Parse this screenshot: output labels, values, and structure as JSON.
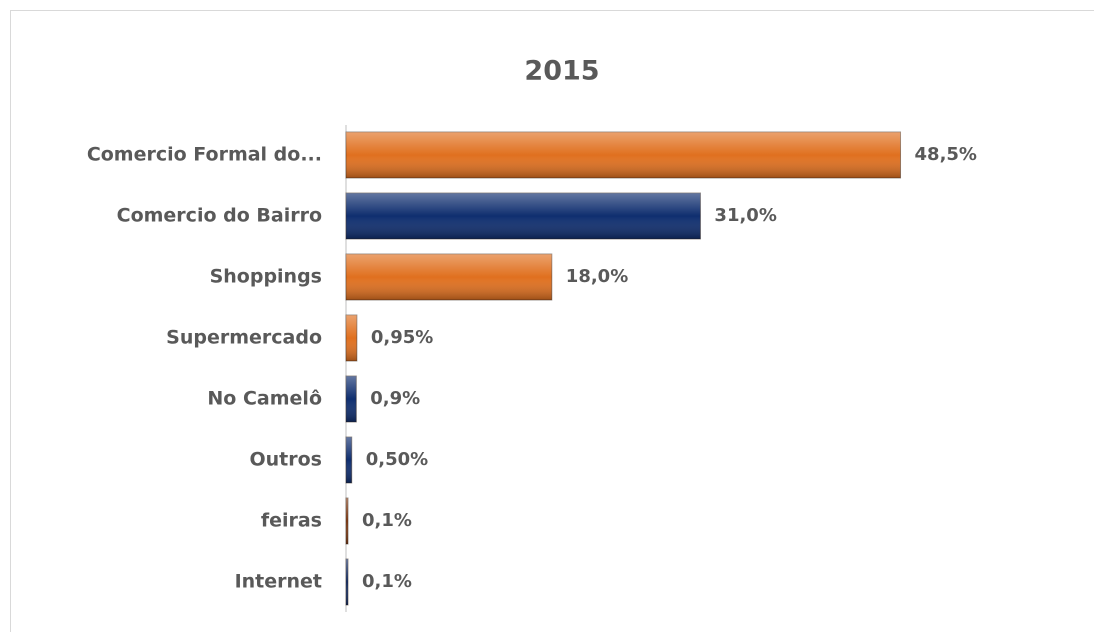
{
  "chart_data": {
    "type": "hbar",
    "title": "2015",
    "categories": [
      "Comercio Formal do...",
      "Comercio  do Bairro",
      "Shoppings",
      "Supermercado",
      "No Camelô",
      "Outros",
      "feiras",
      "Internet"
    ],
    "values": [
      48.5,
      31.0,
      18.0,
      0.95,
      0.9,
      0.5,
      0.1,
      0.1
    ],
    "value_labels": [
      "48,5%",
      "31,0%",
      "18,0%",
      "0,95%",
      "0,9%",
      "0,50%",
      "0,1%",
      "0,1%"
    ],
    "colors": [
      "#e0701f",
      "#0f2e6f",
      "#e0701f",
      "#e0701f",
      "#0f2e6f",
      "#0f2e6f",
      "#8a3d12",
      "#0f2e6f"
    ],
    "xlim": [
      0,
      60
    ]
  }
}
